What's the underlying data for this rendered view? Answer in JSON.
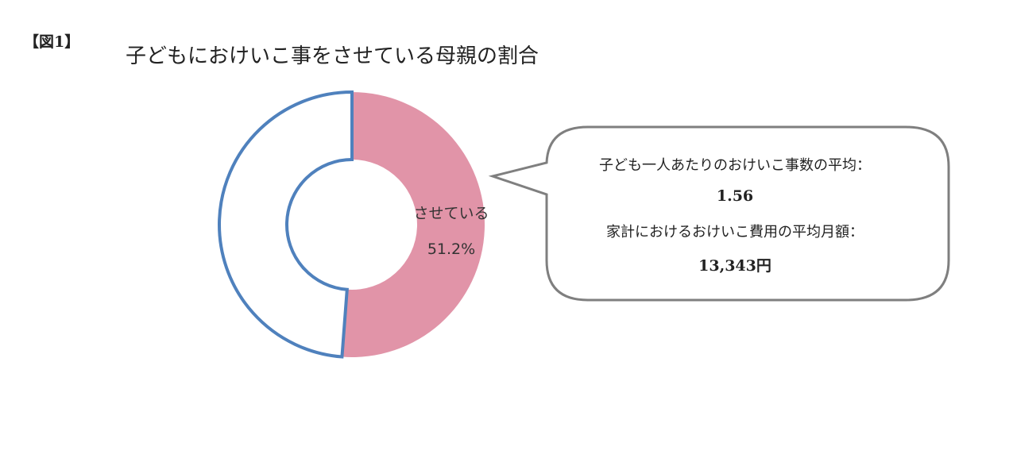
{
  "figure_label": "【図1】",
  "chart_data": {
    "type": "pie",
    "style": "donut",
    "title": "子どもにおけいこ事をさせている母親の割合",
    "slices": [
      {
        "label": "させている",
        "value": 51.2,
        "value_label": "51.2%",
        "color": "#e194a8"
      },
      {
        "label": "",
        "value": 48.8,
        "value_label": "",
        "color": "#ffffff",
        "border": "#4f81bd"
      }
    ],
    "start_angle": "top",
    "direction": "clockwise"
  },
  "callout": {
    "line1": "子ども一人あたりのおけいこ事数の平均：",
    "value1": "1.56",
    "line2": "家計におけるおけいこ費用の平均月額：",
    "value2": "13,343円"
  }
}
